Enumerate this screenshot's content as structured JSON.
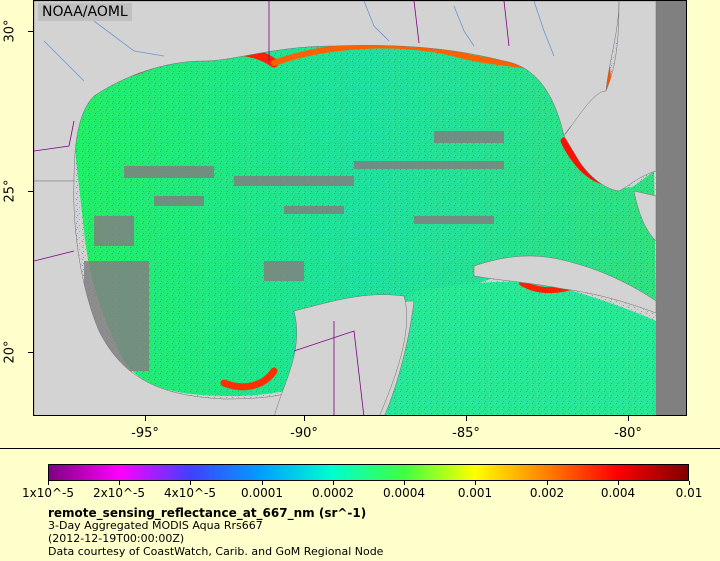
{
  "map": {
    "source_label": "NOAA/AOML",
    "x_ticks": [
      "-95°",
      "-90°",
      "-85°",
      "-80°"
    ],
    "y_ticks": [
      "30°",
      "25°",
      "20°"
    ],
    "colors": {
      "land": "#d3d3d3",
      "no_data": "#808080",
      "border": "#800080",
      "river": "#6699cc"
    }
  },
  "legend": {
    "colorbar_labels": [
      "1x10^-5",
      "2x10^-5",
      "4x10^-5",
      "0.0001",
      "0.0002",
      "0.0004",
      "0.001",
      "0.002",
      "0.004",
      "0.01"
    ],
    "colorbar_colors": [
      "#800080",
      "#ff00ff",
      "#4040ff",
      "#00a0ff",
      "#00ffcc",
      "#40ff40",
      "#ffff00",
      "#ff8000",
      "#ff0000",
      "#800000"
    ],
    "variable": "remote_sensing_reflectance_at_667_nm (sr^-1)",
    "product": "3-Day Aggregated MODIS Aqua Rrs667",
    "date": "(2012-12-19T00:00:00Z)",
    "credit": "Data courtesy of CoastWatch, Carib. and GoM Regional Node"
  }
}
